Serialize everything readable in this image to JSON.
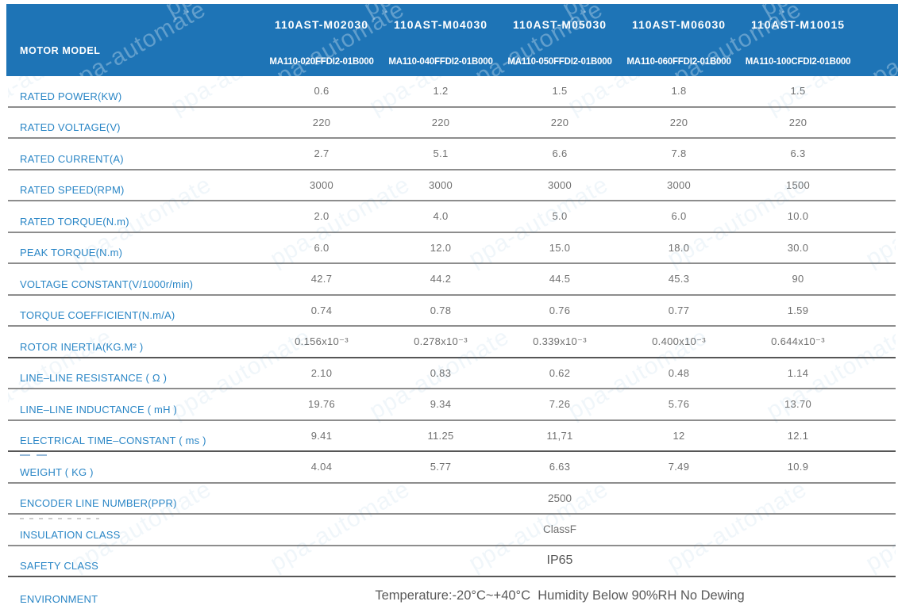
{
  "watermark": {
    "text": "ppa-automate"
  },
  "colors": {
    "header_bg": "#1e74b6",
    "header_text": "#ffffff",
    "label_text": "#2a86c6",
    "value_text": "#707070",
    "row_line": "#8d8d8d"
  },
  "table": {
    "corner_label": "MOTOR MODEL",
    "columns": [
      {
        "model": "110AST-M02030",
        "code": "MA110-020FFDI2-01B000"
      },
      {
        "model": "110AST-M04030",
        "code": "MA110-040FFDI2-01B000"
      },
      {
        "model": "110AST-M05030",
        "code": "MA110-050FFDI2-01B000"
      },
      {
        "model": "110AST-M06030",
        "code": "MA110-060FFDI2-01B000"
      },
      {
        "model": "110AST-M10015",
        "code": "MA110-100CFDI2-01B000"
      }
    ],
    "rows": [
      {
        "label": "RATED POWER(KW)",
        "values": [
          "0.6",
          "1.2",
          "1.5",
          "1.8",
          "1.5"
        ]
      },
      {
        "label": "RATED VOLTAGE(V)",
        "values": [
          "220",
          "220",
          "220",
          "220",
          "220"
        ]
      },
      {
        "label": "RATED CURRENT(A)",
        "values": [
          "2.7",
          "5.1",
          "6.6",
          "7.8",
          "6.3"
        ]
      },
      {
        "label": "RATED SPEED(RPM)",
        "values": [
          "3000",
          "3000",
          "3000",
          "3000",
          "1500"
        ]
      },
      {
        "label": "RATED TORQUE(N.m)",
        "values": [
          "2.0",
          "4.0",
          "5.0",
          "6.0",
          "10.0"
        ]
      },
      {
        "label": "PEAK TORQUE(N.m)",
        "values": [
          "6.0",
          "12.0",
          "15.0",
          "18.0",
          "30.0"
        ]
      },
      {
        "label": "VOLTAGE CONSTANT(V/1000r/min)",
        "values": [
          "42.7",
          "44.2",
          "44.5",
          "45.3",
          "90"
        ]
      },
      {
        "label": "TORQUE COEFFICIENT(N.m/A)",
        "values": [
          "0.74",
          "0.78",
          "0.76",
          "0.77",
          "1.59"
        ]
      },
      {
        "label": "ROTOR INERTIA(KG.M² )",
        "values": [
          "0.156x10⁻³",
          "0.278x10⁻³",
          "0.339x10⁻³",
          "0.400x10⁻³",
          "0.644x10⁻³"
        ],
        "dark_line": true
      },
      {
        "label": "LINE–LINE RESISTANCE ( Ω )",
        "values": [
          "2.10",
          "0.83",
          "0.62",
          "0.48",
          "1.14"
        ]
      },
      {
        "label": "LINE–LINE INDUCTANCE ( mH )",
        "values": [
          "19.76",
          "9.34",
          "7.26",
          "5.76",
          "13.70"
        ]
      },
      {
        "label": "ELECTRICAL TIME–CONSTANT ( ms )",
        "values": [
          "9.41",
          "11.25",
          "11,71",
          "12",
          "12.1"
        ],
        "dark_line": true
      },
      {
        "label": "WEIGHT ( KG )",
        "values": [
          "4.04",
          "5.77",
          "6.63",
          "7.49",
          "10.9"
        ]
      },
      {
        "label": "ENCODER LINE NUMBER(PPR)",
        "span_value": "2500",
        "span_style": "sm"
      },
      {
        "label": "INSULATION CLASS",
        "span_value": "ClassF",
        "span_style": "sm"
      },
      {
        "label": "SAFETY CLASS",
        "span_value": "IP65",
        "span_style": "md",
        "dark_line": true
      },
      {
        "label": "ENVIRONMENT",
        "span_value": "Temperature:-20°C~+40°C  Humidity Below 90%RH No Dewing",
        "span_style": "lg"
      }
    ]
  }
}
